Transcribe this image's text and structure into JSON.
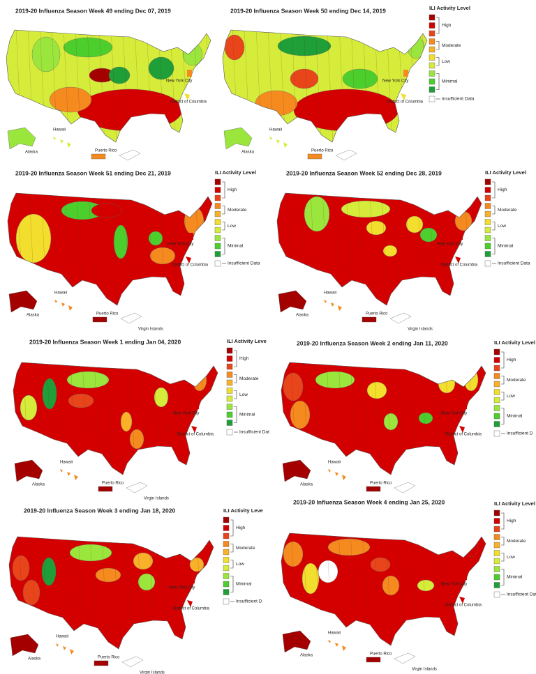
{
  "panels": [
    {
      "title": "2019-20 Influenza Season Week 49 ending Dec 07, 2019",
      "labels": [
        "New York City",
        "District of Columbia",
        "Hawaii",
        "Alaska",
        "Puerto Rico"
      ]
    },
    {
      "title": "2019-20 Influenza Season Week 50 ending Dec 14, 2019",
      "labels": [
        "New York City",
        "District of Columbia",
        "Hawaii",
        "Alaska",
        "Puerto Rico"
      ],
      "legend": {
        "title": "ILI Activity Level",
        "levels": [
          "High",
          "Moderate",
          "Low",
          "Minimal"
        ],
        "insufficient": "Insufficient Data"
      }
    },
    {
      "title": "2019-20 Influenza Season Week 51 ending Dec 21, 2019",
      "labels": [
        "New York City",
        "District of Columbia",
        "Hawaii",
        "Alaska",
        "Puerto Rico",
        "Virgin Islands"
      ],
      "legend": {
        "title": "ILI Activity Level",
        "levels": [
          "High",
          "Moderate",
          "Low",
          "Minimal"
        ],
        "insufficient": "Insufficient Data"
      }
    },
    {
      "title": "2019-20 Influenza Season Week 52 ending Dec 28, 2019",
      "labels": [
        "New York City",
        "District of Columbia",
        "Hawaii",
        "Alaska",
        "Puerto Rico",
        "Virgin Islands"
      ],
      "legend": {
        "title": "ILI Activity Level",
        "levels": [
          "High",
          "Moderate",
          "Low",
          "Minimal"
        ],
        "insufficient": "Insufficient Data"
      }
    },
    {
      "title": "2019-20 Influenza Season Week 1 ending Jan 04, 2020",
      "labels": [
        "New York City",
        "District of Columbia",
        "Hawaii",
        "Alaska",
        "Puerto Rico",
        "Virgin Islands"
      ],
      "legend": {
        "title": "ILI Activity Leve",
        "levels": [
          "High",
          "Moderate",
          "Low",
          "Minimal"
        ],
        "insufficient": "Insufficient Dat"
      }
    },
    {
      "title": "2019-20 Influenza Season Week 2 ending Jan 11, 2020",
      "labels": [
        "New York City",
        "District of Columbia",
        "Hawaii",
        "Alaska",
        "Puerto Rico"
      ],
      "legend": {
        "title": "ILI Activity Level",
        "levels": [
          "High",
          "Moderate",
          "Low",
          "Minimal"
        ],
        "insufficient": "Insufficient D"
      }
    },
    {
      "title": "2019-20 Influenza Season Week 3 ending Jan 18, 2020",
      "labels": [
        "New York City",
        "District of Columbia",
        "Hawaii",
        "Alaska",
        "Puerto Rico",
        "Virgin Islands"
      ],
      "legend": {
        "title": "ILI Activity Leve",
        "levels": [
          "High",
          "Moderate",
          "Low",
          "Minimal"
        ],
        "insufficient": "Insufficient D"
      }
    },
    {
      "title": "2019-20 Influenza Season Week 4 ending Jan 25, 2020",
      "labels": [
        "New York City",
        "District of Columbia",
        "Hawaii",
        "Alaska",
        "Puerto Rico",
        "Virgin Islands"
      ],
      "legend": {
        "title": "ILI Activity Level",
        "levels": [
          "High",
          "Moderate",
          "Low",
          "Minimal"
        ],
        "insufficient": "Insufficient Data"
      }
    }
  ]
}
